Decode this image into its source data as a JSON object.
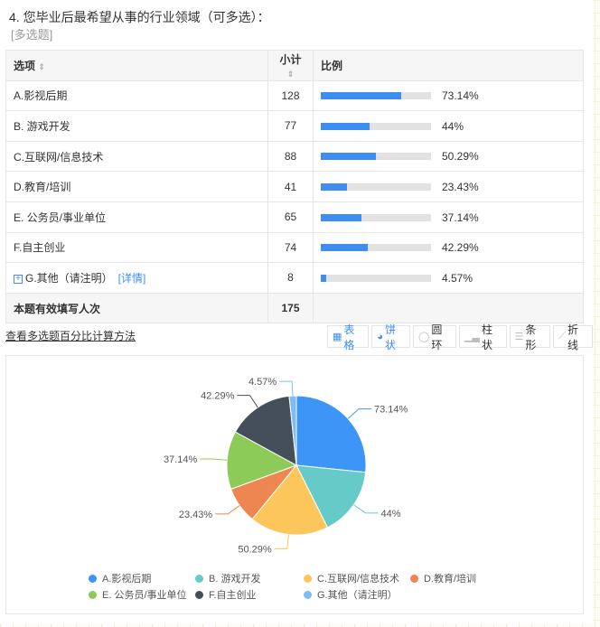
{
  "question": {
    "title": "4. 您毕业后最希望从事的行业领域（可多选）：",
    "type": "[多选题]"
  },
  "table": {
    "headers": {
      "option": "选项",
      "count": "小计",
      "ratio": "比例"
    },
    "rows": [
      {
        "label": "A.影视后期",
        "count": "128",
        "pct": "73.14%",
        "value": 73.14
      },
      {
        "label": "B. 游戏开发",
        "count": "77",
        "pct": "44%",
        "value": 44
      },
      {
        "label": "C.互联网/信息技术",
        "count": "88",
        "pct": "50.29%",
        "value": 50.29
      },
      {
        "label": "D.教育/培训",
        "count": "41",
        "pct": "23.43%",
        "value": 23.43
      },
      {
        "label": "E. 公务员/事业单位",
        "count": "65",
        "pct": "37.14%",
        "value": 37.14
      },
      {
        "label": "F.自主创业",
        "count": "74",
        "pct": "42.29%",
        "value": 42.29
      },
      {
        "label": "G.其他（请注明）",
        "count": "8",
        "pct": "4.57%",
        "value": 4.57,
        "detail": "[详情]"
      }
    ],
    "total": {
      "label": "本题有效填写人次",
      "count": "175"
    }
  },
  "method_link": "查看多选题百分比计算方法",
  "tools": [
    {
      "label": "表格",
      "icon": "table-icon"
    },
    {
      "label": "饼状",
      "icon": "pie-icon",
      "active": true
    },
    {
      "label": "圆环",
      "icon": "donut-icon"
    },
    {
      "label": "柱状",
      "icon": "bar-chart-icon"
    },
    {
      "label": "条形",
      "icon": "horizontal-bar-icon"
    },
    {
      "label": "折线",
      "icon": "line-chart-icon"
    }
  ],
  "chart_data": {
    "type": "pie",
    "categories": [
      "A.影视后期",
      "B. 游戏开发",
      "C.互联网/信息技术",
      "D.教育/培训",
      "E. 公务员/事业单位",
      "F.自主创业",
      "G.其他（请注明）"
    ],
    "values": [
      128,
      77,
      88,
      41,
      65,
      74,
      8
    ],
    "labels": [
      "73.14%",
      "44%",
      "50.29%",
      "23.43%",
      "37.14%",
      "42.29%",
      "4.57%"
    ],
    "colors": [
      "#3d95f7",
      "#66cbc8",
      "#fcc65a",
      "#ee8652",
      "#8dcb58",
      "#444f59",
      "#7ebcf9"
    ],
    "legend": "bottom"
  }
}
